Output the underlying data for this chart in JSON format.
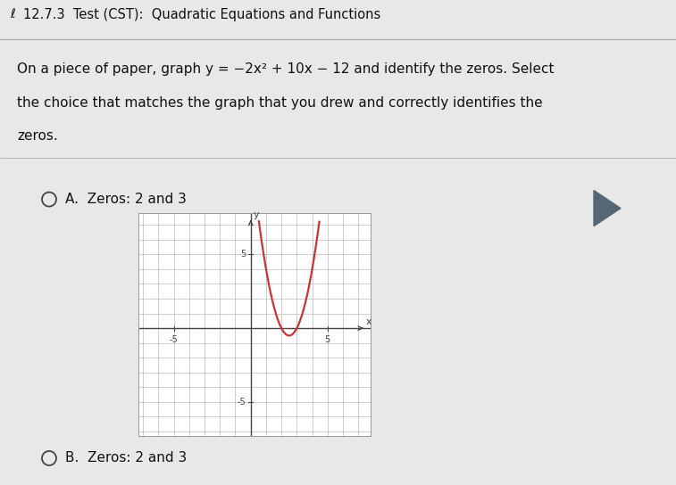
{
  "title": "12.7.3  Test (CST):  Quadratic Equations and Functions",
  "question_line1": "On a piece of paper, graph y = −2x² + 10x − 12 and identify the zeros. Select",
  "question_line2": "the choice that matches the graph that you drew and correctly identifies the",
  "question_line3": "zeros.",
  "option_a_text": "A.  Zeros: 2 and 3",
  "option_b_text": "B.  Zeros: 2 and 3",
  "graph_color": "#cc3333",
  "graph_bg": "#ffffff",
  "grid_color": "#bbbbbb",
  "axis_color": "#444444",
  "xlim": [
    -7,
    7
  ],
  "ylim": [
    -7,
    7
  ],
  "page_bg": "#e8e8e8",
  "box_bg": "#f5f5f5",
  "text_color": "#111111",
  "radio_color": "#444444",
  "title_fontsize": 10.5,
  "question_fontsize": 11,
  "option_fontsize": 11
}
